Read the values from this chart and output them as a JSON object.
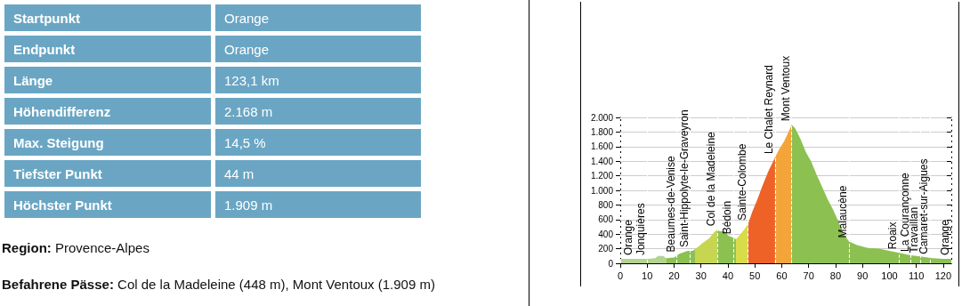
{
  "chart_data": [
    {
      "type": "other",
      "y_categories": [
        "Startpunkt",
        "Endpunkt",
        "Länge",
        "Höhendifferenz",
        "Max. Steigung",
        "Tiefster Punkt",
        "Höchster Punkt"
      ],
      "cell_labels": [
        [
          "Orange"
        ],
        [
          "Orange"
        ],
        [
          "123,1 km"
        ],
        [
          "2.168 m"
        ],
        [
          "14,5 %"
        ],
        [
          "44 m"
        ],
        [
          "1.909 m"
        ]
      ],
      "color": "#6aa6c4",
      "annotations": [
        "Region: Provence-Alpes",
        "Befahrene Pässe: Col de la Madeleine (448 m), Mont Ventoux (1.909 m)"
      ]
    },
    {
      "type": "area",
      "xlim": [
        0,
        123
      ],
      "xticks": [
        0,
        10,
        20,
        30,
        40,
        50,
        60,
        70,
        80,
        90,
        100,
        110,
        120
      ],
      "ylim": [
        0,
        2000
      ],
      "yticks": [
        0,
        200,
        400,
        600,
        800,
        {
          "value": 1000,
          "label": "1.000"
        },
        {
          "value": 1200,
          "label": "1.200"
        },
        {
          "value": 1400,
          "label": "1.400"
        },
        {
          "value": 1600,
          "label": "1.600"
        },
        {
          "value": 1800,
          "label": "1.800"
        },
        {
          "value": 2000,
          "label": "2.000"
        }
      ],
      "grid": "y",
      "marker": "none",
      "series": [
        {
          "color": "#b3d48f",
          "x": [
            0,
            5,
            10,
            13,
            14,
            16,
            17
          ],
          "values": [
            60,
            60,
            60,
            70,
            100,
            100,
            70
          ]
        },
        {
          "color": "#8cc152",
          "x": [
            17,
            20,
            22,
            25,
            27,
            28
          ],
          "values": [
            70,
            80,
            130,
            170,
            170,
            200
          ]
        },
        {
          "color": "#c6d650",
          "x": [
            28,
            29,
            31,
            33,
            35,
            36
          ],
          "values": [
            200,
            230,
            290,
            340,
            430,
            460
          ]
        },
        {
          "color": "#8cc152",
          "x": [
            36,
            37,
            39,
            40,
            42,
            43
          ],
          "values": [
            460,
            440,
            440,
            380,
            350,
            330
          ]
        },
        {
          "color": "#d8dc48",
          "x": [
            43,
            44,
            46,
            47.5
          ],
          "values": [
            330,
            370,
            460,
            540
          ]
        },
        {
          "color": "#ee6228",
          "x": [
            47.5,
            49,
            51,
            53,
            55,
            57.5
          ],
          "values": [
            540,
            700,
            880,
            1080,
            1260,
            1450
          ]
        },
        {
          "color": "#f4a53a",
          "x": [
            57.5,
            59,
            61,
            63,
            63.7
          ],
          "values": [
            1450,
            1560,
            1680,
            1840,
            1900
          ]
        },
        {
          "color": "#8cc152",
          "x": [
            63.7,
            65,
            67,
            69,
            71,
            73,
            75,
            77,
            79,
            81,
            83,
            85,
            88,
            92,
            96,
            100,
            104,
            108,
            112,
            116,
            120,
            123
          ],
          "values": [
            1900,
            1850,
            1700,
            1520,
            1390,
            1210,
            1050,
            880,
            740,
            580,
            400,
            300,
            250,
            210,
            200,
            170,
            140,
            110,
            90,
            70,
            60,
            60
          ]
        }
      ],
      "ref_lines": [
        {
          "axis": "x",
          "value": 0,
          "label": "Orange"
        },
        {
          "axis": "x",
          "value": 10,
          "label": "Jonquières"
        },
        {
          "axis": "x",
          "value": 21,
          "label": "Beaumes-de-Venise"
        },
        {
          "axis": "x",
          "value": 26,
          "label": "Saint-Hippolyte-le-Graveyron"
        },
        {
          "axis": "x",
          "value": 36,
          "label": "Col de la Madeleine"
        },
        {
          "axis": "x",
          "value": 42,
          "label": "Bédoin"
        },
        {
          "axis": "x",
          "value": 47.5,
          "label": "Sainte-Colombe"
        },
        {
          "axis": "x",
          "value": 57.5,
          "label": "Le Chalet Reynard"
        },
        {
          "axis": "x",
          "value": 63.7,
          "label": "Mont Ventoux"
        },
        {
          "axis": "x",
          "value": 85,
          "label": "Malaucène"
        },
        {
          "axis": "x",
          "value": 103.5,
          "label": "Roaix"
        },
        {
          "axis": "x",
          "value": 108,
          "label": "La Courançonne"
        },
        {
          "axis": "x",
          "value": 111.5,
          "label": "Travaillan"
        },
        {
          "axis": "x",
          "value": 115,
          "label": "Camaret-sur-Aigues"
        },
        {
          "axis": "x",
          "value": 123,
          "label": "Orange"
        }
      ]
    }
  ]
}
